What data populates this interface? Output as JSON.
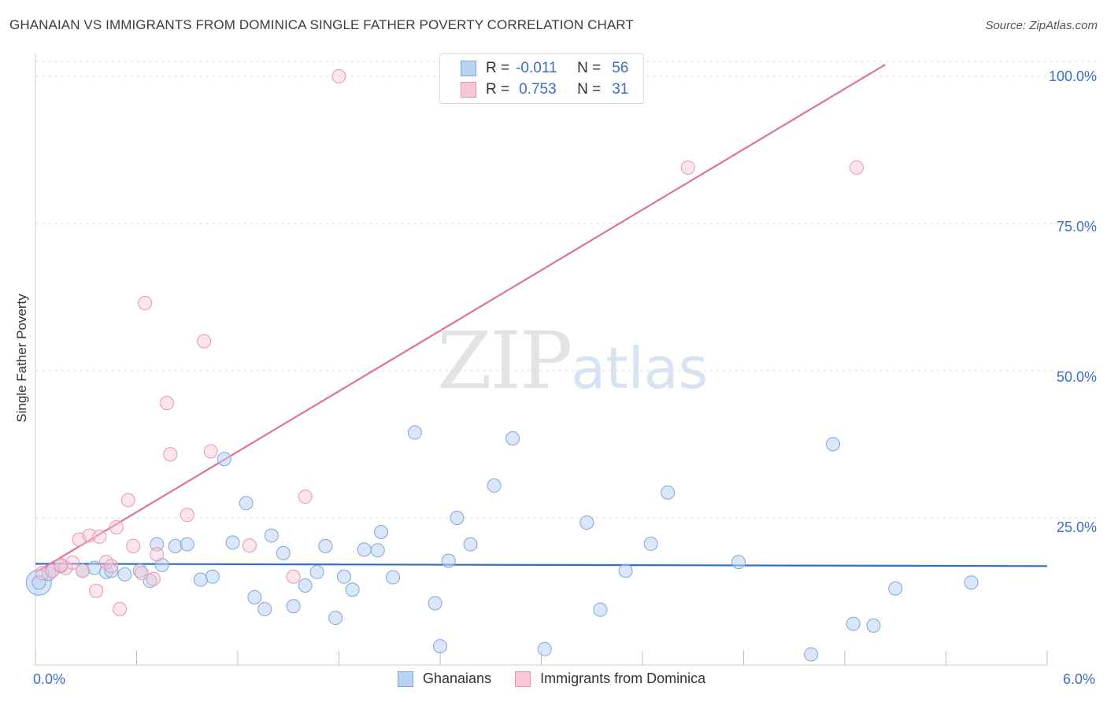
{
  "header": {
    "title": "GHANAIAN VS IMMIGRANTS FROM DOMINICA SINGLE FATHER POVERTY CORRELATION CHART",
    "source": "Source: ZipAtlas.com"
  },
  "watermark": {
    "zip": "ZIP",
    "atlas": "atlas"
  },
  "legend": {
    "rows": [
      {
        "r_label": "R =",
        "r_value": "-0.011",
        "n_label": "N =",
        "n_value": "56"
      },
      {
        "r_label": "R =",
        "r_value": "0.753",
        "n_label": "N =",
        "n_value": "31"
      }
    ]
  },
  "axes": {
    "x_min_label": "0.0%",
    "x_max_label": "6.0%",
    "y_label": "Single Father Poverty",
    "y_ticks": [
      "100.0%",
      "75.0%",
      "50.0%",
      "25.0%"
    ]
  },
  "colors": {
    "blue_fill": "#b9d3f3",
    "blue_stroke": "#7fa6d9",
    "blue_line": "#2f6fc6",
    "pink_fill": "#f8c6d5",
    "pink_stroke": "#ea93ae",
    "pink_line": "#e2709a",
    "grid": "#dddddd"
  },
  "chart_data": {
    "type": "scatter",
    "title": "GHANAIAN VS IMMIGRANTS FROM DOMINICA SINGLE FATHER POVERTY CORRELATION CHART",
    "xlabel": "",
    "ylabel": "Single Father Poverty",
    "xlim": [
      0,
      6
    ],
    "ylim": [
      0,
      100
    ],
    "y_ticks": [
      25,
      50,
      75,
      100
    ],
    "grid": true,
    "series": [
      {
        "name": "Ghanaians",
        "color": "#7fa6d9",
        "r": -0.011,
        "n": 56,
        "trend": {
          "x": [
            0,
            6
          ],
          "y": [
            17.2,
            16.8
          ]
        },
        "points": [
          [
            0.02,
            14.0
          ],
          [
            0.08,
            15.5
          ],
          [
            0.1,
            16.0
          ],
          [
            0.15,
            16.8
          ],
          [
            0.28,
            16.0
          ],
          [
            0.35,
            16.5
          ],
          [
            0.42,
            15.8
          ],
          [
            0.45,
            16.0
          ],
          [
            0.53,
            15.4
          ],
          [
            0.62,
            16.0
          ],
          [
            0.68,
            14.3
          ],
          [
            0.72,
            20.5
          ],
          [
            0.75,
            17.0
          ],
          [
            0.83,
            20.2
          ],
          [
            0.9,
            20.5
          ],
          [
            0.98,
            14.5
          ],
          [
            1.05,
            15.0
          ],
          [
            1.12,
            35.0
          ],
          [
            1.17,
            20.8
          ],
          [
            1.25,
            27.5
          ],
          [
            1.3,
            11.5
          ],
          [
            1.36,
            9.5
          ],
          [
            1.4,
            22.0
          ],
          [
            1.47,
            19.0
          ],
          [
            1.53,
            10.0
          ],
          [
            1.6,
            13.5
          ],
          [
            1.67,
            15.8
          ],
          [
            1.72,
            20.2
          ],
          [
            1.78,
            8.0
          ],
          [
            1.83,
            15.0
          ],
          [
            1.88,
            12.8
          ],
          [
            1.95,
            19.6
          ],
          [
            2.03,
            19.5
          ],
          [
            2.05,
            22.6
          ],
          [
            2.12,
            14.9
          ],
          [
            2.25,
            39.5
          ],
          [
            2.37,
            10.5
          ],
          [
            2.4,
            3.2
          ],
          [
            2.45,
            17.7
          ],
          [
            2.5,
            25.0
          ],
          [
            2.58,
            20.5
          ],
          [
            2.72,
            30.5
          ],
          [
            2.83,
            38.5
          ],
          [
            3.02,
            2.7
          ],
          [
            3.27,
            24.2
          ],
          [
            3.35,
            9.4
          ],
          [
            3.5,
            16.0
          ],
          [
            3.65,
            20.6
          ],
          [
            3.75,
            29.3
          ],
          [
            4.17,
            17.5
          ],
          [
            4.6,
            1.8
          ],
          [
            4.73,
            37.5
          ],
          [
            4.85,
            7.0
          ],
          [
            4.97,
            6.7
          ],
          [
            5.1,
            13.0
          ],
          [
            5.55,
            14.0
          ]
        ]
      },
      {
        "name": "Immigrants from Dominica",
        "color": "#ea93ae",
        "r": 0.753,
        "n": 31,
        "trend": {
          "x": [
            0,
            5.04
          ],
          "y": [
            15.7,
            102.0
          ]
        },
        "points": [
          [
            0.04,
            15.6
          ],
          [
            0.1,
            16.0
          ],
          [
            0.18,
            16.5
          ],
          [
            0.22,
            17.4
          ],
          [
            0.26,
            21.3
          ],
          [
            0.28,
            16.0
          ],
          [
            0.32,
            22.0
          ],
          [
            0.36,
            12.6
          ],
          [
            0.38,
            21.8
          ],
          [
            0.42,
            17.5
          ],
          [
            0.48,
            23.4
          ],
          [
            0.5,
            9.5
          ],
          [
            0.55,
            28.0
          ],
          [
            0.58,
            20.2
          ],
          [
            0.63,
            15.6
          ],
          [
            0.65,
            61.5
          ],
          [
            0.7,
            14.6
          ],
          [
            0.72,
            18.8
          ],
          [
            0.78,
            44.5
          ],
          [
            0.8,
            35.8
          ],
          [
            0.9,
            25.5
          ],
          [
            1.0,
            55.0
          ],
          [
            1.04,
            36.3
          ],
          [
            1.27,
            20.3
          ],
          [
            1.53,
            15.0
          ],
          [
            1.6,
            28.6
          ],
          [
            1.8,
            100.0
          ],
          [
            3.87,
            84.5
          ],
          [
            4.87,
            84.5
          ],
          [
            0.15,
            17.0
          ],
          [
            0.45,
            16.8
          ]
        ]
      }
    ]
  },
  "bottom_legend": [
    {
      "label": "Ghanaians"
    },
    {
      "label": "Immigrants from Dominica"
    }
  ]
}
